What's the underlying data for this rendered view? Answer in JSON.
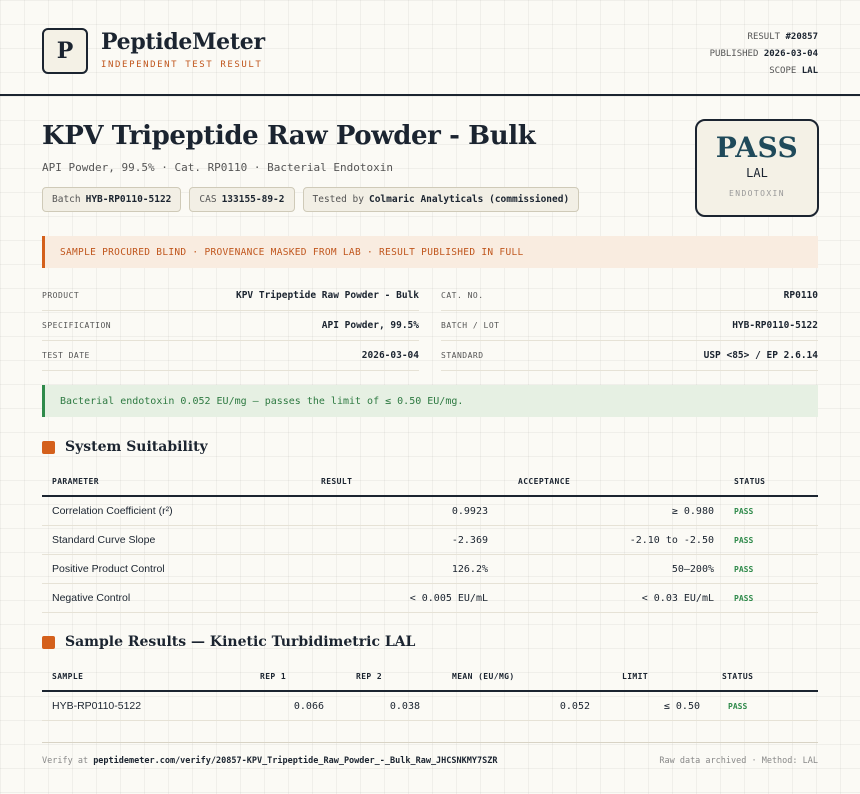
{
  "header": {
    "logo_letter": "P",
    "brand_name": "PeptideMeter",
    "brand_tagline": "INDEPENDENT TEST RESULT",
    "meta": [
      {
        "label": "RESULT",
        "value": "#20857"
      },
      {
        "label": "PUBLISHED",
        "value": "2026-03-04"
      },
      {
        "label": "SCOPE",
        "value": "LAL"
      }
    ]
  },
  "product": {
    "title": "KPV Tripeptide Raw Powder - Bulk",
    "subtitle": "API Powder, 99.5% · Cat. RP0110 · Bacterial Endotoxin",
    "chips": [
      {
        "label": "Batch",
        "value": "HYB-RP0110-5122"
      },
      {
        "label": "CAS",
        "value": "133155-89-2"
      },
      {
        "label": "Tested by",
        "value": "Colmaric Analyticals (commissioned)"
      }
    ]
  },
  "verdict": {
    "word": "PASS",
    "scope": "LAL",
    "kind": "ENDOTOXIN"
  },
  "notice_banner": "SAMPLE PROCURED BLIND · PROVENANCE MASKED FROM LAB · RESULT PUBLISHED IN FULL",
  "info": [
    {
      "left_label": "PRODUCT",
      "left_value": "KPV Tripeptide Raw Powder - Bulk",
      "right_label": "CAT. NO.",
      "right_value": "RP0110"
    },
    {
      "left_label": "SPECIFICATION",
      "left_value": "API Powder, 99.5%",
      "right_label": "BATCH / LOT",
      "right_value": "HYB-RP0110-5122"
    },
    {
      "left_label": "TEST DATE",
      "left_value": "2026-03-04",
      "right_label": "STANDARD",
      "right_value": "USP <85> / EP 2.6.14"
    }
  ],
  "result_banner": "Bacterial endotoxin 0.052 EU/mg — passes the limit of ≤ 0.50 EU/mg.",
  "system_suitability": {
    "title": "System Suitability",
    "headers": [
      "PARAMETER",
      "RESULT",
      "ACCEPTANCE",
      "STATUS"
    ],
    "rows": [
      {
        "parameter": "Correlation Coefficient (r²)",
        "result": "0.9923",
        "acceptance": "≥ 0.980",
        "status": "PASS"
      },
      {
        "parameter": "Standard Curve Slope",
        "result": "-2.369",
        "acceptance": "-2.10 to -2.50",
        "status": "PASS"
      },
      {
        "parameter": "Positive Product Control",
        "result": "126.2%",
        "acceptance": "50–200%",
        "status": "PASS"
      },
      {
        "parameter": "Negative Control",
        "result": "< 0.005 EU/mL",
        "acceptance": "< 0.03 EU/mL",
        "status": "PASS"
      }
    ]
  },
  "sample_results": {
    "title": "Sample Results — Kinetic Turbidimetric LAL",
    "headers": [
      "SAMPLE",
      "REP 1",
      "REP 2",
      "MEAN (EU/MG)",
      "LIMIT",
      "STATUS"
    ],
    "rows": [
      {
        "sample": "HYB-RP0110-5122",
        "rep1": "0.066",
        "rep2": "0.038",
        "mean": "0.052",
        "limit": "≤ 0.50",
        "status": "PASS"
      }
    ]
  },
  "footer": {
    "verify_prefix": "Verify at",
    "verify_url": "peptidemeter.com/verify/20857-KPV_Tripeptide_Raw_Powder_-_Bulk_Raw_JHCSNKMY7SZR",
    "right_text": "Raw data archived · Method: LAL"
  }
}
